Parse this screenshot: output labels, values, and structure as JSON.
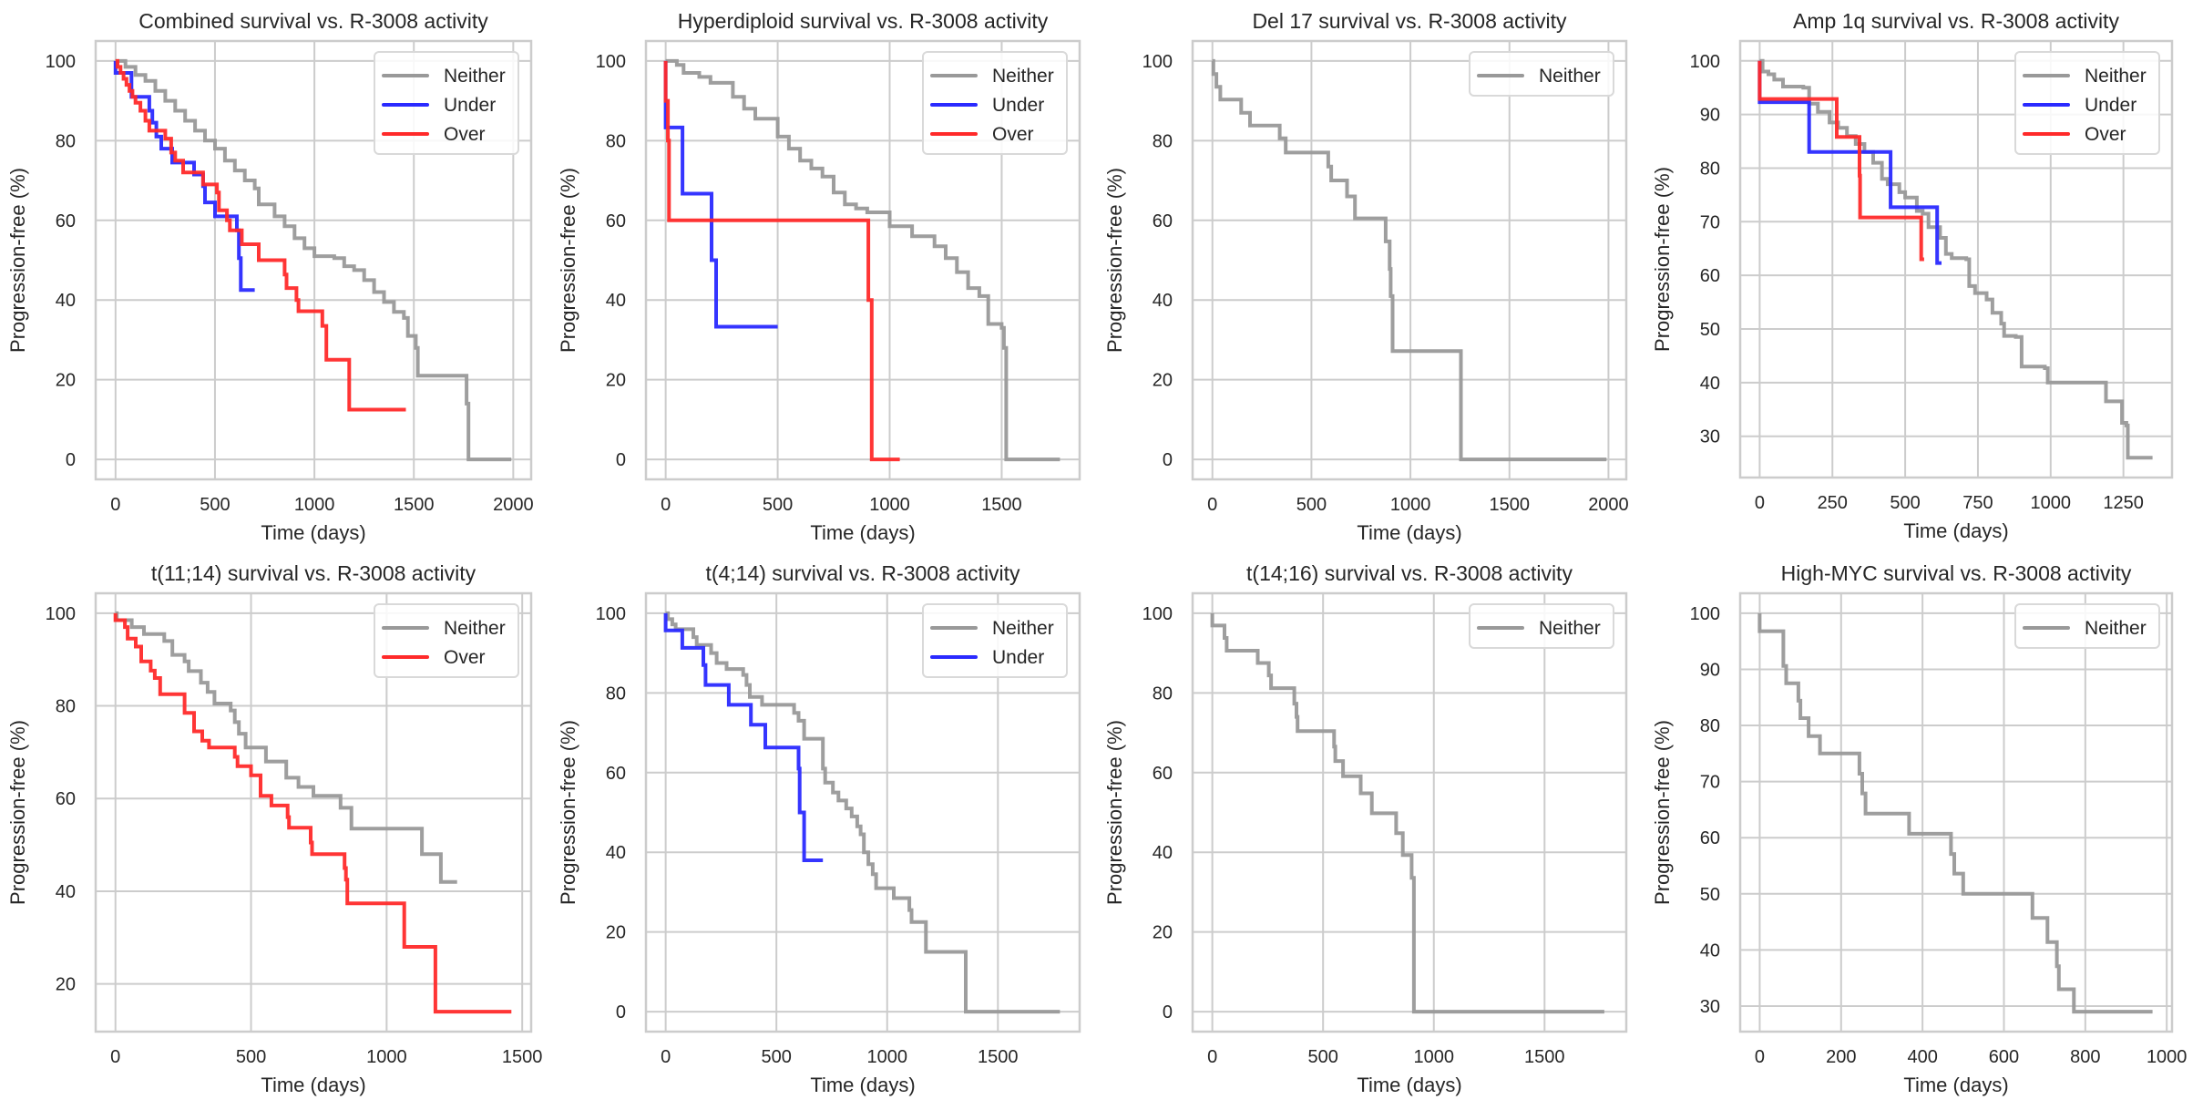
{
  "figure": {
    "series_colors": {
      "Neither": "#999999",
      "Under": "#2a2aff",
      "Over": "#ff2a2a"
    },
    "grid_color": "#cccccc",
    "axis_edge_color": "#cccccc"
  },
  "chart_data": [
    {
      "type": "line",
      "step": true,
      "title": "Combined survival vs. R-3008 activity",
      "xlabel": "Time (days)",
      "ylabel": "Progression-free (%)",
      "xlim": [
        -100,
        2090
      ],
      "ylim": [
        -5,
        105
      ],
      "xticks": [
        0,
        500,
        1000,
        1500,
        2000
      ],
      "yticks": [
        0,
        20,
        40,
        60,
        80,
        100
      ],
      "grid": true,
      "legend": "top-right",
      "series": [
        {
          "name": "Neither",
          "x": [
            0,
            50,
            100,
            150,
            200,
            250,
            300,
            350,
            400,
            450,
            500,
            550,
            600,
            650,
            700,
            720,
            800,
            850,
            900,
            950,
            1000,
            1100,
            1150,
            1200,
            1250,
            1300,
            1350,
            1400,
            1450,
            1470,
            1510,
            1520,
            1760,
            1765,
            1775,
            1990
          ],
          "y": [
            100,
            98.5,
            96.5,
            95,
            92.5,
            90,
            87.5,
            85,
            82.5,
            80,
            78,
            75,
            72.5,
            70,
            68,
            64,
            61,
            58.5,
            55.5,
            53,
            51,
            50.5,
            48.5,
            47.5,
            45,
            42,
            39.5,
            37,
            35.5,
            31,
            28,
            21,
            21,
            14,
            0,
            0
          ]
        },
        {
          "name": "Under",
          "x": [
            0,
            0,
            80,
            170,
            185,
            205,
            230,
            285,
            395,
            440,
            450,
            500,
            610,
            620,
            630,
            700
          ],
          "y": [
            100,
            97,
            91,
            87.5,
            84.5,
            81,
            78,
            74.5,
            71.5,
            68.6,
            64.5,
            61,
            57.5,
            50.5,
            42.5,
            42.5
          ]
        },
        {
          "name": "Over",
          "x": [
            0,
            10,
            25,
            40,
            55,
            70,
            85,
            100,
            125,
            150,
            170,
            250,
            280,
            300,
            340,
            440,
            510,
            520,
            560,
            575,
            635,
            720,
            850,
            860,
            910,
            920,
            1040,
            1060,
            1175,
            1460
          ],
          "y": [
            100,
            98.5,
            97,
            95.5,
            94,
            92.5,
            91,
            89.5,
            87.5,
            85,
            82.5,
            80.5,
            77,
            75,
            72,
            69,
            67,
            62.5,
            60,
            57.5,
            54,
            50,
            46.4,
            43,
            40,
            37.2,
            33.5,
            25,
            12.5,
            12.5
          ]
        }
      ]
    },
    {
      "type": "line",
      "step": true,
      "title": "Hyperdiploid survival vs. R-3008 activity",
      "xlabel": "Time (days)",
      "ylabel": "Progression-free (%)",
      "xlim": [
        -88,
        1848
      ],
      "ylim": [
        -5,
        105
      ],
      "xticks": [
        0,
        500,
        1000,
        1500
      ],
      "yticks": [
        0,
        20,
        40,
        60,
        80,
        100
      ],
      "grid": true,
      "legend": "top-right",
      "series": [
        {
          "name": "Neither",
          "x": [
            0,
            50,
            80,
            150,
            200,
            300,
            350,
            400,
            500,
            550,
            600,
            650,
            700,
            750,
            800,
            850,
            900,
            1000,
            1100,
            1200,
            1250,
            1300,
            1350,
            1400,
            1440,
            1500,
            1510,
            1520,
            1760
          ],
          "y": [
            100,
            99,
            97,
            96,
            94.5,
            91,
            88,
            85.5,
            81,
            78,
            75,
            73,
            71,
            67,
            64,
            63,
            62,
            58.5,
            56,
            53.5,
            50.5,
            47,
            43,
            41,
            34,
            33,
            28,
            0,
            0
          ]
        },
        {
          "name": "Under",
          "x": [
            0,
            0,
            0,
            75,
            205,
            225,
            500
          ],
          "y": [
            100,
            89.7,
            83.3,
            66.7,
            50,
            33.3,
            33.3
          ]
        },
        {
          "name": "Over",
          "x": [
            0,
            0,
            10,
            15,
            905,
            920,
            1045
          ],
          "y": [
            100,
            90,
            80,
            60,
            40,
            0,
            0
          ]
        }
      ]
    },
    {
      "type": "line",
      "step": true,
      "title": "Del 17 survival vs. R-3008 activity",
      "xlabel": "Time (days)",
      "ylabel": "Progression-free (%)",
      "xlim": [
        -100,
        2090
      ],
      "ylim": [
        -5,
        105
      ],
      "xticks": [
        0,
        500,
        1000,
        1500,
        2000
      ],
      "yticks": [
        0,
        20,
        40,
        60,
        80,
        100
      ],
      "grid": true,
      "legend": "top-right",
      "series": [
        {
          "name": "Neither",
          "x": [
            0,
            5,
            20,
            40,
            145,
            190,
            340,
            370,
            585,
            600,
            680,
            720,
            875,
            895,
            900,
            910,
            1255,
            1990
          ],
          "y": [
            100,
            96.7,
            93.5,
            90.3,
            87,
            83.8,
            80.6,
            77,
            73.5,
            70,
            66,
            60.5,
            54.7,
            47.8,
            41,
            27.2,
            0,
            0
          ]
        }
      ]
    },
    {
      "type": "line",
      "step": true,
      "title": "Amp 1q survival vs. R-3008 activity",
      "xlabel": "Time (days)",
      "ylabel": "Progression-free (%)",
      "xlim": [
        -67,
        1417
      ],
      "ylim": [
        22.3,
        103.7
      ],
      "xticks": [
        0,
        250,
        500,
        750,
        1000,
        1250
      ],
      "yticks": [
        30,
        40,
        50,
        60,
        70,
        80,
        90,
        100
      ],
      "grid": true,
      "legend": "top-right",
      "series": [
        {
          "name": "Neither",
          "x": [
            0,
            10,
            30,
            50,
            80,
            150,
            170,
            200,
            240,
            270,
            300,
            330,
            360,
            390,
            420,
            440,
            480,
            500,
            540,
            560,
            580,
            620,
            640,
            660,
            710,
            720,
            740,
            780,
            800,
            830,
            840,
            880,
            900,
            980,
            990,
            1180,
            1190,
            1240,
            1245,
            1260,
            1265,
            1350
          ],
          "y": [
            100,
            98,
            97.5,
            96.5,
            95.2,
            95,
            92,
            90.5,
            88.5,
            87.5,
            86,
            84.5,
            83,
            81,
            78,
            77,
            75.5,
            74.5,
            72,
            71.5,
            69,
            67,
            64,
            63.2,
            63,
            58,
            56.7,
            55.5,
            53,
            51,
            48.7,
            48.5,
            43,
            42.7,
            40,
            40,
            36.5,
            36.5,
            32.5,
            32,
            26,
            26
          ]
        },
        {
          "name": "Under",
          "x": [
            0,
            0,
            170,
            450,
            610,
            625
          ],
          "y": [
            100,
            92.3,
            83,
            72.7,
            62.3,
            62.3
          ]
        },
        {
          "name": "Over",
          "x": [
            0,
            0,
            265,
            343,
            345,
            555,
            565
          ],
          "y": [
            100,
            92.9,
            85.8,
            78.6,
            70.8,
            63,
            63
          ]
        }
      ]
    },
    {
      "type": "line",
      "step": true,
      "title": "t(11;14) survival vs. R-3008 activity",
      "xlabel": "Time (days)",
      "ylabel": "Progression-free (%)",
      "xlim": [
        -73,
        1533
      ],
      "ylim": [
        9.7,
        104.3
      ],
      "xticks": [
        0,
        500,
        1000,
        1500
      ],
      "yticks": [
        20,
        40,
        60,
        80,
        100
      ],
      "grid": true,
      "legend": "top-right",
      "series": [
        {
          "name": "Neither",
          "x": [
            0,
            5,
            60,
            105,
            180,
            210,
            255,
            270,
            315,
            340,
            365,
            425,
            440,
            455,
            480,
            555,
            630,
            675,
            730,
            830,
            870,
            1130,
            1200,
            1260
          ],
          "y": [
            100,
            98.5,
            97,
            95.5,
            94,
            91,
            89.6,
            87.5,
            85,
            83,
            80.5,
            79,
            76.5,
            74,
            71,
            68,
            64.5,
            62.5,
            60.6,
            58,
            53.5,
            48,
            42,
            42
          ]
        },
        {
          "name": "Over",
          "x": [
            0,
            0,
            35,
            45,
            75,
            95,
            130,
            145,
            165,
            255,
            290,
            320,
            345,
            440,
            450,
            500,
            535,
            575,
            635,
            640,
            720,
            725,
            845,
            850,
            855,
            1065,
            1180,
            1460
          ],
          "y": [
            100,
            98.5,
            97,
            94.5,
            92.8,
            89.6,
            87.6,
            86,
            82.5,
            78.5,
            74.5,
            72.5,
            71,
            69,
            67,
            65,
            60.6,
            58.5,
            56,
            53.7,
            50.5,
            48,
            45,
            42.5,
            37.4,
            28,
            14,
            14
          ]
        }
      ]
    },
    {
      "type": "line",
      "step": true,
      "title": "t(4;14) survival vs. R-3008 activity",
      "xlabel": "Time (days)",
      "ylabel": "Progression-free (%)",
      "xlim": [
        -89,
        1869
      ],
      "ylim": [
        -5,
        105
      ],
      "xticks": [
        0,
        500,
        1000,
        1500
      ],
      "yticks": [
        0,
        20,
        40,
        60,
        80,
        100
      ],
      "grid": true,
      "legend": "top-right",
      "series": [
        {
          "name": "Neither",
          "x": [
            0,
            10,
            30,
            45,
            125,
            140,
            205,
            230,
            275,
            350,
            365,
            380,
            435,
            580,
            600,
            625,
            710,
            720,
            755,
            780,
            815,
            840,
            865,
            880,
            895,
            915,
            935,
            950,
            1030,
            1100,
            1110,
            1175,
            1355,
            1780
          ],
          "y": [
            100,
            98.5,
            97.2,
            96,
            94,
            92,
            90,
            87.5,
            86,
            84.5,
            82,
            79,
            77,
            75,
            73,
            68.5,
            61,
            57.5,
            55,
            53,
            51,
            49,
            46.5,
            44.5,
            40,
            37,
            34.5,
            31,
            28.5,
            25.5,
            22.5,
            15,
            0,
            0
          ]
        },
        {
          "name": "Under",
          "x": [
            0,
            0,
            75,
            170,
            180,
            285,
            385,
            450,
            600,
            605,
            625,
            710
          ],
          "y": [
            100,
            95.7,
            91.3,
            87,
            82,
            77,
            72,
            66.3,
            61,
            50,
            38,
            38
          ]
        }
      ]
    },
    {
      "type": "line",
      "step": true,
      "title": "t(14;16) survival vs. R-3008 activity",
      "xlabel": "Time (days)",
      "ylabel": "Progression-free (%)",
      "xlim": [
        -89,
        1869
      ],
      "ylim": [
        -5,
        105
      ],
      "xticks": [
        0,
        500,
        1000,
        1500
      ],
      "yticks": [
        0,
        20,
        40,
        60,
        80,
        100
      ],
      "grid": true,
      "legend": "top-right",
      "series": [
        {
          "name": "Neither",
          "x": [
            0,
            0,
            55,
            65,
            205,
            255,
            265,
            370,
            380,
            385,
            550,
            555,
            590,
            670,
            720,
            830,
            860,
            900,
            910,
            1770
          ],
          "y": [
            100,
            96.9,
            93.8,
            90.6,
            87.5,
            84.4,
            81.2,
            77.3,
            74,
            70.4,
            66.5,
            62.9,
            59.1,
            54.8,
            49.8,
            44.8,
            39.3,
            33.6,
            0,
            0
          ]
        }
      ]
    },
    {
      "type": "line",
      "step": true,
      "title": "High-MYC survival vs. R-3008 activity",
      "xlabel": "Time (days)",
      "ylabel": "Progression-free (%)",
      "xlim": [
        -48,
        1013
      ],
      "ylim": [
        25.45,
        103.55
      ],
      "xticks": [
        0,
        200,
        400,
        600,
        800,
        1000
      ],
      "yticks": [
        30,
        40,
        50,
        60,
        70,
        80,
        90,
        100
      ],
      "grid": true,
      "legend": "top-right",
      "series": [
        {
          "name": "Neither",
          "x": [
            0,
            0,
            58,
            65,
            95,
            100,
            120,
            148,
            245,
            252,
            260,
            367,
            470,
            478,
            500,
            670,
            707,
            730,
            735,
            772,
            965
          ],
          "y": [
            100,
            96.8,
            90.6,
            87.5,
            84.4,
            81.3,
            78.1,
            75,
            71.4,
            67.9,
            64.3,
            60.7,
            57.1,
            53.6,
            50,
            45.7,
            41.4,
            37.1,
            33,
            29,
            29
          ]
        }
      ]
    }
  ]
}
